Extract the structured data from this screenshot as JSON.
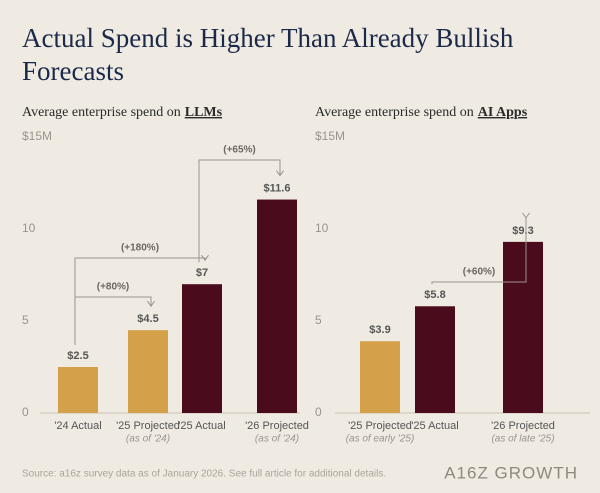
{
  "title": "Actual Spend is Higher Than Already Bullish Forecasts",
  "source": "Source: a16z survey data as of January 2026. See full article for additional details.",
  "logo": "A16Z GROWTH",
  "chart_data": [
    {
      "type": "bar",
      "subtitle": "Average enterprise spend on",
      "subtitle_emphasis": "LLMs",
      "categories": [
        "'24 Actual",
        "'25 Projected",
        "'25 Actual",
        "'26 Projected"
      ],
      "category_notes": [
        null,
        "(as of '24)",
        null,
        "(as of '24)"
      ],
      "values": [
        2.5,
        4.5,
        7,
        11.6
      ],
      "value_labels": [
        "$2.5",
        "$4.5",
        "$7",
        "$11.6"
      ],
      "colors": [
        "#d4a04a",
        "#d4a04a",
        "#4a0c1c",
        "#4a0c1c"
      ],
      "ylim": [
        0,
        15
      ],
      "yticks": [
        0,
        5,
        10,
        {
          "value": 15,
          "label": "$15M"
        }
      ],
      "grid": false,
      "annotations": [
        {
          "text": "(+80%)",
          "from": 0,
          "to": 1
        },
        {
          "text": "(+180%)",
          "from": 0,
          "to": 2
        },
        {
          "text": "(+65%)",
          "from": 2,
          "to": 3
        }
      ]
    },
    {
      "type": "bar",
      "subtitle": "Average enterprise spend on",
      "subtitle_emphasis": "AI Apps",
      "categories": [
        "'25 Projected",
        "'25 Actual",
        "'26 Projected"
      ],
      "category_notes": [
        "(as of early '25)",
        null,
        "(as of late '25)"
      ],
      "values": [
        3.9,
        5.8,
        9.3
      ],
      "value_labels": [
        "$3.9",
        "$5.8",
        "$9.3"
      ],
      "colors": [
        "#d4a04a",
        "#4a0c1c",
        "#4a0c1c"
      ],
      "ylim": [
        0,
        15
      ],
      "yticks": [
        0,
        5,
        10,
        {
          "value": 15,
          "label": "$15M"
        }
      ],
      "grid": false,
      "annotations": [
        {
          "text": "(+60%)",
          "from": 1,
          "to": 2
        }
      ]
    }
  ]
}
